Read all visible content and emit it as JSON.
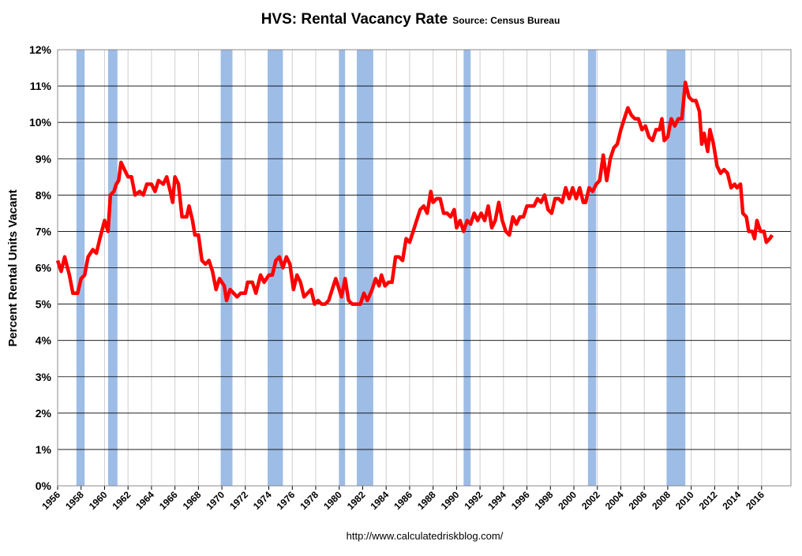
{
  "chart_data": {
    "type": "line",
    "title": "HVS: Rental Vacancy Rate",
    "subtitle": "Source: Census Bureau",
    "y_label": "Percent Rental Units Vacant",
    "footer": "http://www.calculatedriskblog.com/",
    "color": "#ff0000",
    "band_color": "#9dbce6",
    "grid": true,
    "xlim": [
      1956,
      2018.5
    ],
    "xticks": [
      1956,
      1958,
      1960,
      1962,
      1964,
      1966,
      1968,
      1970,
      1972,
      1974,
      1976,
      1978,
      1980,
      1982,
      1984,
      1986,
      1988,
      1990,
      1992,
      1994,
      1996,
      1998,
      2000,
      2002,
      2004,
      2006,
      2008,
      2010,
      2012,
      2014,
      2016
    ],
    "ylim": [
      0,
      12
    ],
    "yticks": [
      {
        "value": 0,
        "label": "0%"
      },
      {
        "value": 1,
        "label": "1%"
      },
      {
        "value": 2,
        "label": "2%"
      },
      {
        "value": 3,
        "label": "3%"
      },
      {
        "value": 4,
        "label": "4%"
      },
      {
        "value": 5,
        "label": "5%"
      },
      {
        "value": 6,
        "label": "6%"
      },
      {
        "value": 7,
        "label": "7%"
      },
      {
        "value": 8,
        "label": "8%"
      },
      {
        "value": 9,
        "label": "9%"
      },
      {
        "value": 10,
        "label": "10%"
      },
      {
        "value": 11,
        "label": "11%"
      },
      {
        "value": 12,
        "label": "12%"
      }
    ],
    "recession_bands": [
      [
        1957.6,
        1958.3
      ],
      [
        1960.3,
        1961.1
      ],
      [
        1969.9,
        1970.9
      ],
      [
        1973.9,
        1975.2
      ],
      [
        1980.0,
        1980.5
      ],
      [
        1981.5,
        1982.9
      ],
      [
        1990.6,
        1991.2
      ],
      [
        2001.2,
        2001.9
      ],
      [
        2007.9,
        2009.5
      ]
    ],
    "x": [
      1956,
      1956.3,
      1956.6,
      1957,
      1957.3,
      1957.7,
      1958,
      1958.3,
      1958.6,
      1959,
      1959.3,
      1959.6,
      1960,
      1960.3,
      1960.5,
      1960.8,
      1961,
      1961.2,
      1961.4,
      1961.7,
      1962,
      1962.3,
      1962.6,
      1963,
      1963.3,
      1963.6,
      1964,
      1964.3,
      1964.6,
      1965,
      1965.3,
      1965.6,
      1965.8,
      1966,
      1966.3,
      1966.6,
      1967,
      1967.2,
      1967.5,
      1967.7,
      1968,
      1968.3,
      1968.6,
      1968.9,
      1969.2,
      1969.5,
      1969.8,
      1970.2,
      1970.4,
      1970.7,
      1971,
      1971.3,
      1971.6,
      1972,
      1972.2,
      1972.6,
      1972.9,
      1973.3,
      1973.6,
      1974,
      1974.3,
      1974.6,
      1974.9,
      1975.2,
      1975.5,
      1975.8,
      1976.1,
      1976.4,
      1976.7,
      1977,
      1977.3,
      1977.6,
      1977.9,
      1978.2,
      1978.5,
      1978.8,
      1979.1,
      1979.5,
      1979.7,
      1980,
      1980.2,
      1980.5,
      1980.8,
      1981.1,
      1981.5,
      1981.8,
      1982.1,
      1982.4,
      1982.8,
      1983.1,
      1983.4,
      1983.6,
      1983.9,
      1984.2,
      1984.5,
      1984.8,
      1985.1,
      1985.4,
      1985.7,
      1986,
      1986.3,
      1986.6,
      1986.9,
      1987.2,
      1987.5,
      1987.8,
      1988,
      1988.3,
      1988.6,
      1988.9,
      1989.2,
      1989.5,
      1989.8,
      1990,
      1990.3,
      1990.6,
      1990.9,
      1991.2,
      1991.5,
      1991.8,
      1992.1,
      1992.4,
      1992.7,
      1993,
      1993.3,
      1993.6,
      1993.9,
      1994.2,
      1994.5,
      1994.8,
      1995.1,
      1995.4,
      1995.7,
      1996,
      1996.3,
      1996.6,
      1996.9,
      1997.2,
      1997.5,
      1997.8,
      1998.1,
      1998.4,
      1998.7,
      1999,
      1999.3,
      1999.6,
      1999.9,
      2000.2,
      2000.5,
      2000.8,
      2001,
      2001.3,
      2001.6,
      2001.9,
      2002.2,
      2002.5,
      2002.8,
      2003.1,
      2003.4,
      2003.7,
      2004,
      2004.3,
      2004.6,
      2004.9,
      2005.2,
      2005.5,
      2005.8,
      2006.1,
      2006.4,
      2006.7,
      2007,
      2007.3,
      2007.5,
      2007.7,
      2008,
      2008.3,
      2008.6,
      2008.9,
      2009.2,
      2009.5,
      2009.8,
      2010.1,
      2010.4,
      2010.7,
      2010.9,
      2011.1,
      2011.4,
      2011.6,
      2011.9,
      2012.2,
      2012.5,
      2012.8,
      2013.1,
      2013.4,
      2013.7,
      2013.9,
      2014.2,
      2014.4,
      2014.7,
      2014.9,
      2015.2,
      2015.4,
      2015.6,
      2015.9,
      2016.2,
      2016.4,
      2016.7,
      2016.9
    ],
    "values": [
      6.2,
      5.9,
      6.3,
      5.8,
      5.3,
      5.3,
      5.7,
      5.8,
      6.3,
      6.5,
      6.4,
      6.8,
      7.3,
      7.0,
      8.0,
      8.1,
      8.3,
      8.4,
      8.9,
      8.7,
      8.5,
      8.5,
      8.0,
      8.1,
      8.0,
      8.3,
      8.3,
      8.1,
      8.4,
      8.3,
      8.5,
      8.1,
      7.8,
      8.5,
      8.3,
      7.4,
      7.4,
      7.7,
      7.3,
      6.9,
      6.9,
      6.2,
      6.1,
      6.2,
      5.9,
      5.4,
      5.7,
      5.5,
      5.1,
      5.4,
      5.3,
      5.2,
      5.3,
      5.3,
      5.6,
      5.6,
      5.3,
      5.8,
      5.6,
      5.8,
      5.8,
      6.2,
      6.3,
      6.0,
      6.3,
      6.1,
      5.4,
      5.8,
      5.6,
      5.2,
      5.3,
      5.4,
      5.0,
      5.1,
      5.0,
      5.0,
      5.1,
      5.5,
      5.7,
      5.4,
      5.2,
      5.7,
      5.1,
      5.0,
      5.0,
      5.0,
      5.3,
      5.1,
      5.4,
      5.7,
      5.5,
      5.8,
      5.5,
      5.6,
      5.6,
      6.3,
      6.3,
      6.2,
      6.8,
      6.7,
      7.0,
      7.3,
      7.6,
      7.7,
      7.5,
      8.1,
      7.8,
      7.9,
      7.9,
      7.5,
      7.5,
      7.4,
      7.6,
      7.1,
      7.3,
      7.0,
      7.3,
      7.2,
      7.5,
      7.3,
      7.5,
      7.3,
      7.7,
      7.1,
      7.3,
      7.8,
      7.3,
      7.0,
      6.9,
      7.4,
      7.2,
      7.4,
      7.4,
      7.7,
      7.7,
      7.7,
      7.9,
      7.8,
      8.0,
      7.6,
      7.5,
      7.9,
      7.9,
      7.8,
      8.2,
      7.9,
      8.2,
      7.9,
      8.2,
      7.8,
      7.8,
      8.2,
      8.1,
      8.3,
      8.4,
      9.1,
      8.4,
      9.0,
      9.3,
      9.4,
      9.8,
      10.1,
      10.4,
      10.2,
      10.1,
      10.1,
      9.8,
      9.9,
      9.6,
      9.5,
      9.8,
      9.8,
      10.1,
      9.5,
      9.6,
      10.1,
      9.9,
      10.1,
      10.1,
      11.1,
      10.7,
      10.6,
      10.6,
      10.3,
      9.4,
      9.7,
      9.2,
      9.8,
      9.4,
      8.8,
      8.6,
      8.7,
      8.6,
      8.2,
      8.3,
      8.2,
      8.3,
      7.5,
      7.4,
      7.0,
      7.0,
      6.8,
      7.3,
      7.0,
      7.0,
      6.7,
      6.8,
      6.9
    ]
  }
}
